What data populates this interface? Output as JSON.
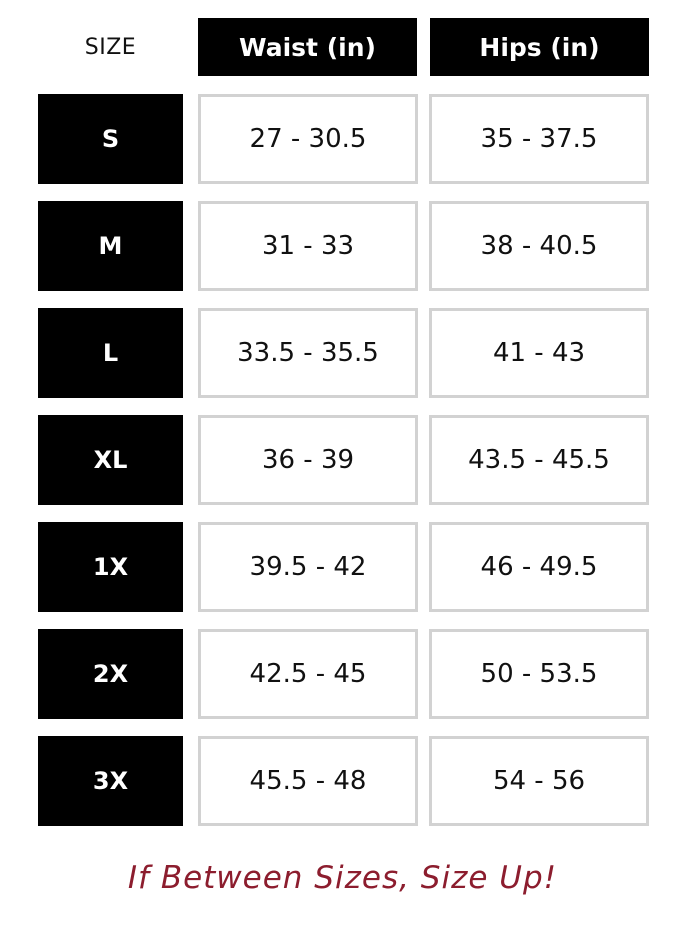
{
  "table": {
    "headers": [
      "SIZE",
      "Waist (in)",
      "Hips (in)"
    ],
    "rows": [
      {
        "size": "S",
        "waist": "27 - 30.5",
        "hips": "35 - 37.5"
      },
      {
        "size": "M",
        "waist": "31 - 33",
        "hips": "38 - 40.5"
      },
      {
        "size": "L",
        "waist": "33.5 - 35.5",
        "hips": "41 - 43"
      },
      {
        "size": "XL",
        "waist": "36 - 39",
        "hips": "43.5 - 45.5"
      },
      {
        "size": "1X",
        "waist": "39.5 - 42",
        "hips": "46 - 49.5"
      },
      {
        "size": "2X",
        "waist": "42.5 - 45",
        "hips": "50 - 53.5"
      },
      {
        "size": "3X",
        "waist": "45.5 - 48",
        "hips": "54 - 56"
      }
    ]
  },
  "footer_note": "If Between Sizes, Size Up!",
  "colors": {
    "header_bg": "#000000",
    "cell_border": "#d2d2d2",
    "note": "#8c1d2e"
  }
}
